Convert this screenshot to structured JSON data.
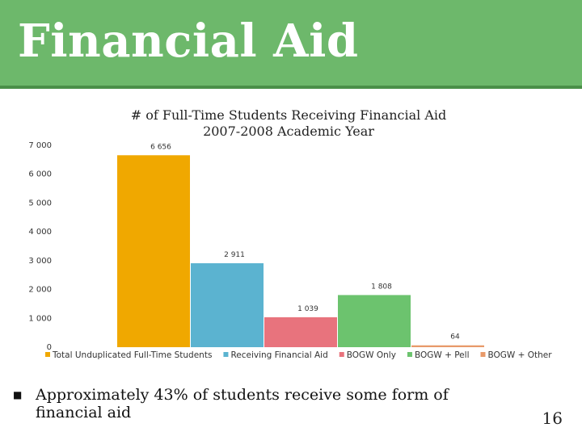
{
  "slide": {
    "title": "Financial Aid",
    "bullet": "Approximately 43% of students receive some form of financial aid",
    "page_number": "16",
    "colors": {
      "title_bar": "#6db86b"
    }
  },
  "chart_data": {
    "type": "bar",
    "title_line1": "# of Full-Time Students Receiving Financial Aid",
    "title_line2": "2007-2008 Academic Year",
    "categories": [
      "Total Unduplicated Full-Time Students",
      "Receiving Financial Aid",
      "BOGW Only",
      "BOGW + Pell",
      "BOGW + Other"
    ],
    "values": [
      6656,
      2911,
      1039,
      1808,
      64
    ],
    "value_labels": [
      "6 656",
      "2 911",
      "1 039",
      "1 808",
      "64"
    ],
    "colors": [
      "#f0a800",
      "#5bb3d0",
      "#e8737d",
      "#6cc36e",
      "#e89a6a"
    ],
    "yticks": [
      0,
      1000,
      2000,
      3000,
      4000,
      5000,
      6000,
      7000
    ],
    "ytick_labels": [
      "0",
      "1 000",
      "2 000",
      "3 000",
      "4 000",
      "5 000",
      "6 000",
      "7 000"
    ],
    "ylim": [
      0,
      7000
    ],
    "grid": false,
    "legend": "bottom"
  }
}
